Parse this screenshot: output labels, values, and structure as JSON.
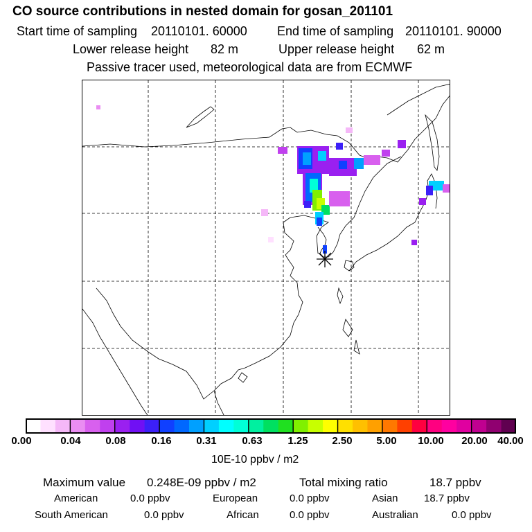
{
  "title": "CO  source contributions in nested domain for gosan_201101",
  "header": {
    "start_label": "Start time of sampling",
    "start_value": "20110101. 60000",
    "end_label": "End time of sampling",
    "end_value": "20110101. 90000",
    "lower_label": "Lower release height",
    "lower_value": "82 m",
    "upper_label": "Upper release height",
    "upper_value": "62 m",
    "note": "Passive tracer used, meteorological data are from ECMWF"
  },
  "colorbar": {
    "tick_labels": [
      "0.00",
      "0.04",
      "0.08",
      "0.16",
      "0.31",
      "0.63",
      "1.25",
      "2.50",
      "5.00",
      "10.00",
      "20.00",
      "40.00"
    ],
    "units": "10E-10 ppbv / m2",
    "colors": [
      "#ffffff",
      "#ffe0ff",
      "#f5b8f8",
      "#ea8df2",
      "#d860ee",
      "#c040ee",
      "#9a20f0",
      "#7010f4",
      "#3c20f8",
      "#1040ff",
      "#0068ff",
      "#00a0ff",
      "#00d0ff",
      "#00ffff",
      "#00ffd8",
      "#00f0a0",
      "#00e060",
      "#20e020",
      "#80f000",
      "#c8ff00",
      "#ffff00",
      "#ffe000",
      "#ffc000",
      "#ffa000",
      "#ff7800",
      "#ff4000",
      "#ff0040",
      "#ff0080",
      "#ff00a0",
      "#e000a0",
      "#c00090",
      "#900070",
      "#600050"
    ]
  },
  "chart_data": {
    "type": "heatmap",
    "title": "CO  source contributions in nested domain for gosan_201101",
    "colorbar_levels": [
      0.0,
      0.04,
      0.08,
      0.16,
      0.31,
      0.63,
      1.25,
      2.5,
      5.0,
      10.0,
      20.0,
      40.0
    ],
    "units": "10E-10 ppbv / m2",
    "receptor": "gosan",
    "maximum_value": "0.248E-09",
    "total_mixing_ratio_ppbv": 18.7
  },
  "summary": {
    "max_label": "Maximum value",
    "max_value": "0.248E-09 ppbv / m2",
    "total_label": "Total mixing ratio",
    "total_value": "18.7 ppbv",
    "regions": [
      {
        "name": "American",
        "value": "0.0 ppbv"
      },
      {
        "name": "European",
        "value": "0.0 ppbv"
      },
      {
        "name": "Asian",
        "value": "18.7 ppbv"
      },
      {
        "name": "South American",
        "value": "0.0 ppbv"
      },
      {
        "name": "African",
        "value": "0.0 ppbv"
      },
      {
        "name": "Australian",
        "value": "0.0 ppbv"
      }
    ]
  }
}
